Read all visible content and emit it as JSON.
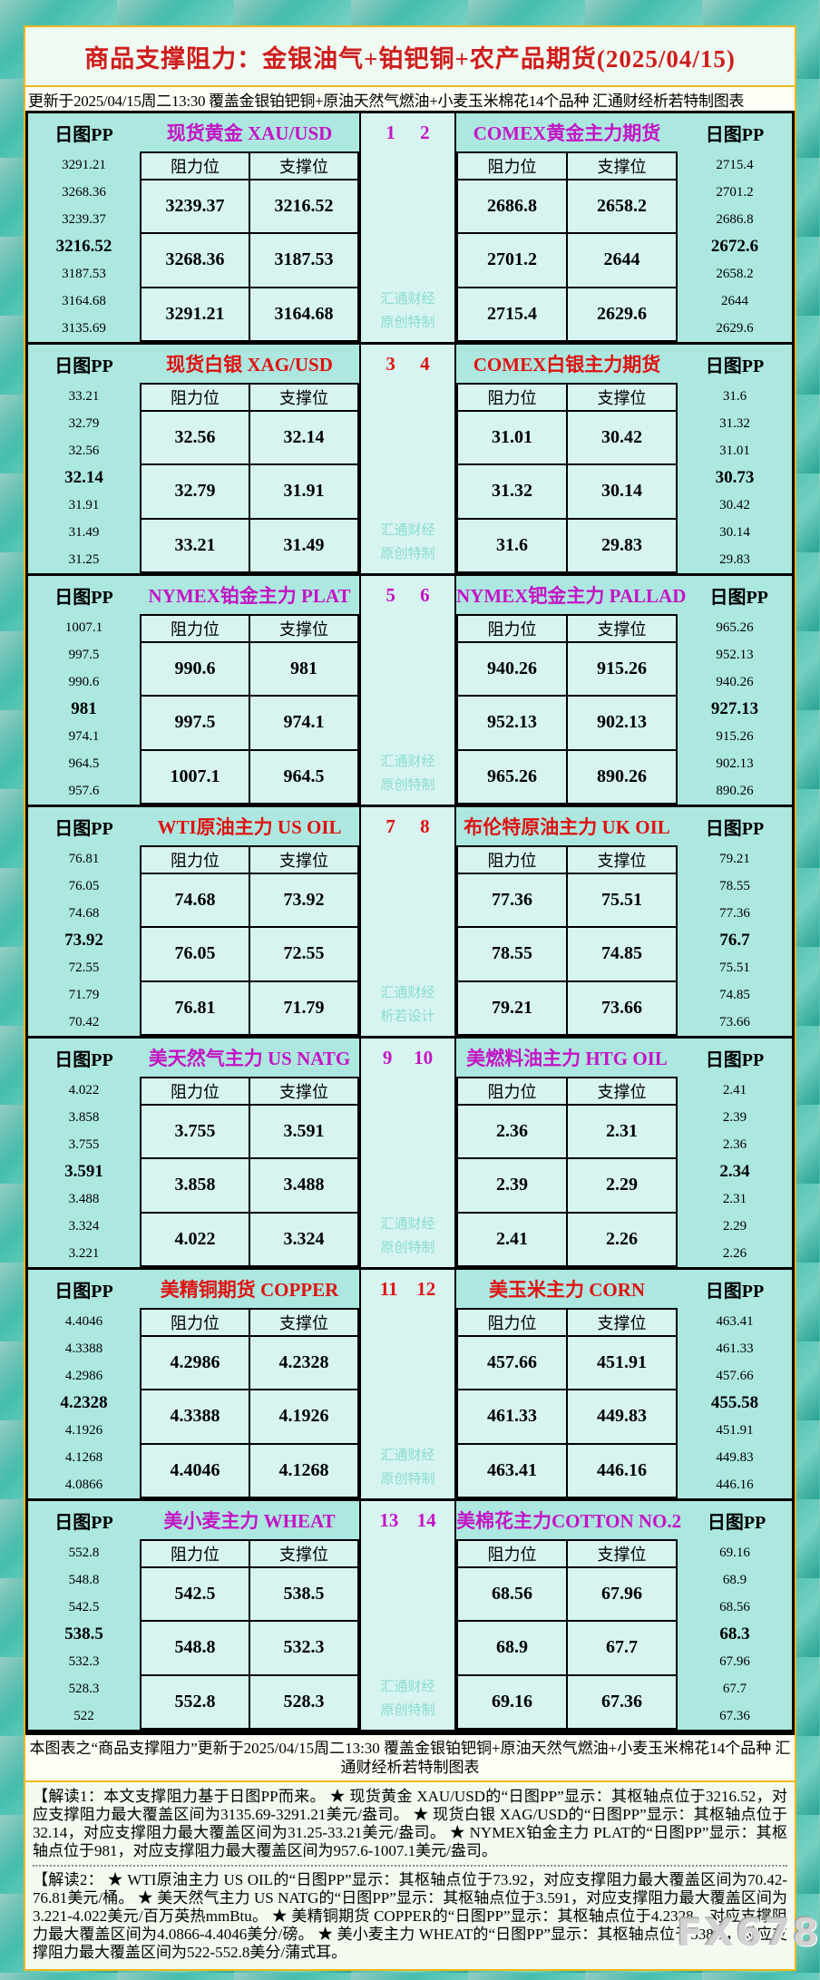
{
  "title": "商品支撑阻力：金银油气+铂钯铜+农产品期货(2025/04/15)",
  "subtitle": "更新于2025/04/15周二13:30 覆盖金银铂钯铜+原油天然气燃油+小麦玉米棉花14个品种 汇通财经析若特制图表",
  "labels": {
    "pp": "日图PP",
    "resistance": "阻力位",
    "support": "支撑位"
  },
  "colors": {
    "magenta": "#c414c4",
    "red": "#df1212",
    "title_red": "#cf1d1d",
    "frame_teal": "#2db3a3",
    "block_bg": "#ace8e0",
    "cell_bg": "#d7f4f0",
    "gold_border": "#edb71e",
    "watermark_teal": "#8adcd0"
  },
  "blocks": [
    {
      "theme": "magenta",
      "left_title": "现货黄金 XAU/USD",
      "num_left": "1",
      "num_right": "2",
      "right_title": "COMEX黄金主力期货",
      "left_pp": [
        "3291.21",
        "3268.36",
        "3239.37",
        "3216.52",
        "3187.53",
        "3164.68",
        "3135.69"
      ],
      "left_table": {
        "rows": [
          [
            "3239.37",
            "3216.52"
          ],
          [
            "3268.36",
            "3187.53"
          ],
          [
            "3291.21",
            "3164.68"
          ]
        ]
      },
      "right_table": {
        "rows": [
          [
            "2686.8",
            "2658.2"
          ],
          [
            "2701.2",
            "2644"
          ],
          [
            "2715.4",
            "2629.6"
          ]
        ]
      },
      "right_pp": [
        "2715.4",
        "2701.2",
        "2686.8",
        "2672.6",
        "2658.2",
        "2644",
        "2629.6"
      ],
      "watermark": [
        "汇通财经",
        "原创特制"
      ]
    },
    {
      "theme": "red",
      "left_title": "现货白银 XAG/USD",
      "num_left": "3",
      "num_right": "4",
      "right_title": "COMEX白银主力期货",
      "left_pp": [
        "33.21",
        "32.79",
        "32.56",
        "32.14",
        "31.91",
        "31.49",
        "31.25"
      ],
      "left_table": {
        "rows": [
          [
            "32.56",
            "32.14"
          ],
          [
            "32.79",
            "31.91"
          ],
          [
            "33.21",
            "31.49"
          ]
        ]
      },
      "right_table": {
        "rows": [
          [
            "31.01",
            "30.42"
          ],
          [
            "31.32",
            "30.14"
          ],
          [
            "31.6",
            "29.83"
          ]
        ]
      },
      "right_pp": [
        "31.6",
        "31.32",
        "31.01",
        "30.73",
        "30.42",
        "30.14",
        "29.83"
      ],
      "watermark": [
        "汇通财经",
        "原创特制"
      ]
    },
    {
      "theme": "magenta",
      "left_title": "NYMEX铂金主力 PLAT",
      "num_left": "5",
      "num_right": "6",
      "right_title": "NYMEX钯金主力 PALLAD",
      "left_pp": [
        "1007.1",
        "997.5",
        "990.6",
        "981",
        "974.1",
        "964.5",
        "957.6"
      ],
      "left_table": {
        "rows": [
          [
            "990.6",
            "981"
          ],
          [
            "997.5",
            "974.1"
          ],
          [
            "1007.1",
            "964.5"
          ]
        ]
      },
      "right_table": {
        "rows": [
          [
            "940.26",
            "915.26"
          ],
          [
            "952.13",
            "902.13"
          ],
          [
            "965.26",
            "890.26"
          ]
        ]
      },
      "right_pp": [
        "965.26",
        "952.13",
        "940.26",
        "927.13",
        "915.26",
        "902.13",
        "890.26"
      ],
      "watermark": [
        "汇通财经",
        "原创特制"
      ]
    },
    {
      "theme": "red",
      "left_title": "WTI原油主力 US OIL",
      "num_left": "7",
      "num_right": "8",
      "right_title": "布伦特原油主力 UK OIL",
      "left_pp": [
        "76.81",
        "76.05",
        "74.68",
        "73.92",
        "72.55",
        "71.79",
        "70.42"
      ],
      "left_table": {
        "rows": [
          [
            "74.68",
            "73.92"
          ],
          [
            "76.05",
            "72.55"
          ],
          [
            "76.81",
            "71.79"
          ]
        ]
      },
      "right_table": {
        "rows": [
          [
            "77.36",
            "75.51"
          ],
          [
            "78.55",
            "74.85"
          ],
          [
            "79.21",
            "73.66"
          ]
        ]
      },
      "right_pp": [
        "79.21",
        "78.55",
        "77.36",
        "76.7",
        "75.51",
        "74.85",
        "73.66"
      ],
      "watermark": [
        "汇通财经",
        "析若设计"
      ]
    },
    {
      "theme": "magenta",
      "left_title": "美天然气主力 US NATG",
      "num_left": "9",
      "num_right": "10",
      "right_title": "美燃料油主力 HTG OIL",
      "left_pp": [
        "4.022",
        "3.858",
        "3.755",
        "3.591",
        "3.488",
        "3.324",
        "3.221"
      ],
      "left_table": {
        "rows": [
          [
            "3.755",
            "3.591"
          ],
          [
            "3.858",
            "3.488"
          ],
          [
            "4.022",
            "3.324"
          ]
        ]
      },
      "right_table": {
        "rows": [
          [
            "2.36",
            "2.31"
          ],
          [
            "2.39",
            "2.29"
          ],
          [
            "2.41",
            "2.26"
          ]
        ]
      },
      "right_pp": [
        "2.41",
        "2.39",
        "2.36",
        "2.34",
        "2.31",
        "2.29",
        "2.26"
      ],
      "watermark": [
        "汇通财经",
        "原创特制"
      ]
    },
    {
      "theme": "red",
      "left_title": "美精铜期货 COPPER",
      "num_left": "11",
      "num_right": "12",
      "right_title": "美玉米主力 CORN",
      "left_pp": [
        "4.4046",
        "4.3388",
        "4.2986",
        "4.2328",
        "4.1926",
        "4.1268",
        "4.0866"
      ],
      "left_table": {
        "rows": [
          [
            "4.2986",
            "4.2328"
          ],
          [
            "4.3388",
            "4.1926"
          ],
          [
            "4.4046",
            "4.1268"
          ]
        ]
      },
      "right_table": {
        "rows": [
          [
            "457.66",
            "451.91"
          ],
          [
            "461.33",
            "449.83"
          ],
          [
            "463.41",
            "446.16"
          ]
        ]
      },
      "right_pp": [
        "463.41",
        "461.33",
        "457.66",
        "455.58",
        "451.91",
        "449.83",
        "446.16"
      ],
      "watermark": [
        "汇通财经",
        "原创特制"
      ]
    },
    {
      "theme": "magenta",
      "left_title": "美小麦主力 WHEAT",
      "num_left": "13",
      "num_right": "14",
      "right_title": "美棉花主力COTTON NO.2",
      "left_pp": [
        "552.8",
        "548.8",
        "542.5",
        "538.5",
        "532.3",
        "528.3",
        "522"
      ],
      "left_table": {
        "rows": [
          [
            "542.5",
            "538.5"
          ],
          [
            "548.8",
            "532.3"
          ],
          [
            "552.8",
            "528.3"
          ]
        ]
      },
      "right_table": {
        "rows": [
          [
            "68.56",
            "67.96"
          ],
          [
            "68.9",
            "67.7"
          ],
          [
            "69.16",
            "67.36"
          ]
        ]
      },
      "right_pp": [
        "69.16",
        "68.9",
        "68.56",
        "68.3",
        "67.96",
        "67.7",
        "67.36"
      ],
      "watermark": [
        "汇通财经",
        "原创特制"
      ]
    }
  ],
  "footer": {
    "summary": "本图表之“商品支撑阻力”更新于2025/04/15周二13:30 覆盖金银铂钯铜+原油天然气燃油+小麦玉米棉花14个品种 汇通财经析若特制图表",
    "jiedu1": "【解读1：本文支撑阻力基于日图PP而来。 ★ 现货黄金 XAU/USD的“日图PP”显示：其枢轴点位于3216.52，对应支撑阻力最大覆盖区间为3135.69-3291.21美元/盎司。 ★ 现货白银 XAG/USD的“日图PP”显示：其枢轴点位于32.14，对应支撑阻力最大覆盖区间为31.25-33.21美元/盎司。 ★ NYMEX铂金主力 PLAT的“日图PP”显示：其枢轴点位于981，对应支撑阻力最大覆盖区间为957.6-1007.1美元/盎司。",
    "jiedu2": "【解读2： ★ WTI原油主力 US OIL的“日图PP”显示：其枢轴点位于73.92，对应支撑阻力最大覆盖区间为70.42-76.81美元/桶。 ★ 美天然气主力 US NATG的“日图PP”显示：其枢轴点位于3.591，对应支撑阻力最大覆盖区间为3.221-4.022美元/百万英热mmBtu。 ★ 美精铜期货 COPPER的“日图PP”显示：其枢轴点位于4.2328，对应支撑阻力最大覆盖区间为4.0866-4.4046美分/磅。 ★ 美小麦主力 WHEAT的“日图PP”显示：其枢轴点位于538.5，对应支撑阻力最大覆盖区间为522-552.8美分/蒲式耳。"
  },
  "brand_watermark": "FX678"
}
